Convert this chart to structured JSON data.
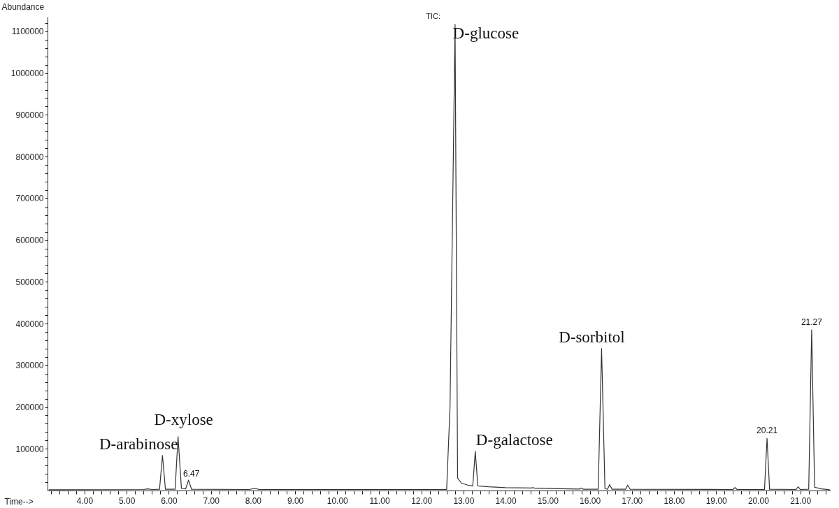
{
  "chart_data": {
    "type": "line",
    "xlabel": "Time-->",
    "ylabel": "Abundance",
    "x": [
      3.15,
      5.4,
      5.5,
      5.6,
      5.78,
      5.85,
      5.92,
      6.15,
      6.22,
      6.3,
      6.4,
      6.47,
      6.54,
      7.9,
      8.05,
      8.15,
      12.6,
      12.68,
      12.8,
      12.86,
      12.95,
      13.1,
      13.22,
      13.28,
      13.34,
      13.6,
      14.0,
      14.6,
      14.65,
      14.7,
      15.5,
      15.75,
      15.8,
      15.85,
      16.2,
      16.28,
      16.36,
      16.42,
      16.47,
      16.53,
      16.85,
      16.9,
      16.96,
      19.4,
      19.45,
      19.5,
      20.15,
      20.21,
      20.27,
      20.9,
      20.95,
      21.0,
      21.2,
      21.27,
      21.34,
      21.5,
      21.7
    ],
    "series": [
      {
        "color": "#333333",
        "values": [
          2000,
          2500,
          4000,
          2500,
          3000,
          84000,
          3000,
          3000,
          129000,
          5000,
          4000,
          25000,
          3000,
          2500,
          5000,
          2500,
          2500,
          200000,
          1117000,
          30000,
          18000,
          13000,
          11000,
          94000,
          11000,
          9000,
          7000,
          6000,
          7000,
          5500,
          4000,
          3500,
          6000,
          3000,
          3000,
          340000,
          5000,
          3000,
          14000,
          3000,
          3000,
          13000,
          3000,
          2500,
          7000,
          2500,
          2500,
          125000,
          3000,
          2500,
          9000,
          2500,
          3000,
          385000,
          8000,
          4000,
          2000
        ]
      }
    ],
    "xlim": [
      3.12,
      21.72
    ],
    "ylim": [
      0,
      1135000
    ],
    "xticks": [
      {
        "value": 3.2,
        "label": null
      },
      {
        "value": 3.4,
        "label": null
      },
      {
        "value": 3.6,
        "label": null
      },
      {
        "value": 3.8,
        "label": null
      },
      {
        "value": 4,
        "label": "4.00"
      },
      {
        "value": 4.2,
        "label": null
      },
      {
        "value": 4.4,
        "label": null
      },
      {
        "value": 4.6,
        "label": null
      },
      {
        "value": 4.8,
        "label": null
      },
      {
        "value": 5,
        "label": "5.00"
      },
      {
        "value": 5.2,
        "label": null
      },
      {
        "value": 5.4,
        "label": null
      },
      {
        "value": 5.6,
        "label": null
      },
      {
        "value": 5.8,
        "label": null
      },
      {
        "value": 6,
        "label": "6.00"
      },
      {
        "value": 6.2,
        "label": null
      },
      {
        "value": 6.4,
        "label": null
      },
      {
        "value": 6.6,
        "label": null
      },
      {
        "value": 6.8,
        "label": null
      },
      {
        "value": 7,
        "label": "7.00"
      },
      {
        "value": 7.2,
        "label": null
      },
      {
        "value": 7.4,
        "label": null
      },
      {
        "value": 7.6,
        "label": null
      },
      {
        "value": 7.8,
        "label": null
      },
      {
        "value": 8,
        "label": "8.00"
      },
      {
        "value": 8.2,
        "label": null
      },
      {
        "value": 8.4,
        "label": null
      },
      {
        "value": 8.6,
        "label": null
      },
      {
        "value": 8.8,
        "label": null
      },
      {
        "value": 9,
        "label": "9.00"
      },
      {
        "value": 9.2,
        "label": null
      },
      {
        "value": 9.4,
        "label": null
      },
      {
        "value": 9.6,
        "label": null
      },
      {
        "value": 9.8,
        "label": null
      },
      {
        "value": 10,
        "label": "10.00"
      },
      {
        "value": 10.2,
        "label": null
      },
      {
        "value": 10.4,
        "label": null
      },
      {
        "value": 10.6,
        "label": null
      },
      {
        "value": 10.8,
        "label": null
      },
      {
        "value": 11,
        "label": "11.00"
      },
      {
        "value": 11.2,
        "label": null
      },
      {
        "value": 11.4,
        "label": null
      },
      {
        "value": 11.6,
        "label": null
      },
      {
        "value": 11.8,
        "label": null
      },
      {
        "value": 12,
        "label": "12.00"
      },
      {
        "value": 12.2,
        "label": null
      },
      {
        "value": 12.4,
        "label": null
      },
      {
        "value": 12.6,
        "label": null
      },
      {
        "value": 12.8,
        "label": null
      },
      {
        "value": 13,
        "label": "13.00"
      },
      {
        "value": 13.2,
        "label": null
      },
      {
        "value": 13.4,
        "label": null
      },
      {
        "value": 13.6,
        "label": null
      },
      {
        "value": 13.8,
        "label": null
      },
      {
        "value": 14,
        "label": "14.00"
      },
      {
        "value": 14.2,
        "label": null
      },
      {
        "value": 14.4,
        "label": null
      },
      {
        "value": 14.6,
        "label": null
      },
      {
        "value": 14.8,
        "label": null
      },
      {
        "value": 15,
        "label": "15.00"
      },
      {
        "value": 15.2,
        "label": null
      },
      {
        "value": 15.4,
        "label": null
      },
      {
        "value": 15.6,
        "label": null
      },
      {
        "value": 15.8,
        "label": null
      },
      {
        "value": 16,
        "label": "16.00"
      },
      {
        "value": 16.2,
        "label": null
      },
      {
        "value": 16.4,
        "label": null
      },
      {
        "value": 16.6,
        "label": null
      },
      {
        "value": 16.8,
        "label": null
      },
      {
        "value": 17,
        "label": "17.00"
      },
      {
        "value": 17.2,
        "label": null
      },
      {
        "value": 17.4,
        "label": null
      },
      {
        "value": 17.6,
        "label": null
      },
      {
        "value": 17.8,
        "label": null
      },
      {
        "value": 18,
        "label": "18.00"
      },
      {
        "value": 18.2,
        "label": null
      },
      {
        "value": 18.4,
        "label": null
      },
      {
        "value": 18.6,
        "label": null
      },
      {
        "value": 18.8,
        "label": null
      },
      {
        "value": 19,
        "label": "19.00"
      },
      {
        "value": 19.2,
        "label": null
      },
      {
        "value": 19.4,
        "label": null
      },
      {
        "value": 19.6,
        "label": null
      },
      {
        "value": 19.8,
        "label": null
      },
      {
        "value": 20,
        "label": "20.00"
      },
      {
        "value": 20.2,
        "label": null
      },
      {
        "value": 20.4,
        "label": null
      },
      {
        "value": 20.6,
        "label": null
      },
      {
        "value": 20.8,
        "label": null
      },
      {
        "value": 21,
        "label": "21.00"
      },
      {
        "value": 21.2,
        "label": null
      },
      {
        "value": 21.4,
        "label": null
      },
      {
        "value": 21.6,
        "label": null
      }
    ],
    "yticks": [
      {
        "value": 20000,
        "label": null
      },
      {
        "value": 40000,
        "label": null
      },
      {
        "value": 60000,
        "label": null
      },
      {
        "value": 80000,
        "label": null
      },
      100000,
      {
        "value": 120000,
        "label": null
      },
      {
        "value": 140000,
        "label": null
      },
      {
        "value": 160000,
        "label": null
      },
      {
        "value": 180000,
        "label": null
      },
      200000,
      {
        "value": 220000,
        "label": null
      },
      {
        "value": 240000,
        "label": null
      },
      {
        "value": 260000,
        "label": null
      },
      {
        "value": 280000,
        "label": null
      },
      300000,
      {
        "value": 320000,
        "label": null
      },
      {
        "value": 340000,
        "label": null
      },
      {
        "value": 360000,
        "label": null
      },
      {
        "value": 380000,
        "label": null
      },
      400000,
      {
        "value": 420000,
        "label": null
      },
      {
        "value": 440000,
        "label": null
      },
      {
        "value": 460000,
        "label": null
      },
      {
        "value": 480000,
        "label": null
      },
      500000,
      {
        "value": 520000,
        "label": null
      },
      {
        "value": 540000,
        "label": null
      },
      {
        "value": 560000,
        "label": null
      },
      {
        "value": 580000,
        "label": null
      },
      600000,
      {
        "value": 620000,
        "label": null
      },
      {
        "value": 640000,
        "label": null
      },
      {
        "value": 660000,
        "label": null
      },
      {
        "value": 680000,
        "label": null
      },
      700000,
      {
        "value": 720000,
        "label": null
      },
      {
        "value": 740000,
        "label": null
      },
      {
        "value": 760000,
        "label": null
      },
      {
        "value": 780000,
        "label": null
      },
      800000,
      {
        "value": 820000,
        "label": null
      },
      {
        "value": 840000,
        "label": null
      },
      {
        "value": 860000,
        "label": null
      },
      {
        "value": 880000,
        "label": null
      },
      900000,
      {
        "value": 920000,
        "label": null
      },
      {
        "value": 940000,
        "label": null
      },
      {
        "value": 960000,
        "label": null
      },
      {
        "value": 980000,
        "label": null
      },
      1000000,
      {
        "value": 1020000,
        "label": null
      },
      {
        "value": 1040000,
        "label": null
      },
      {
        "value": 1060000,
        "label": null
      },
      {
        "value": 1080000,
        "label": null
      },
      1100000,
      {
        "value": 1120000,
        "label": null
      }
    ],
    "grid": false,
    "marker": "none",
    "line_style": "solid",
    "annotations": [
      {
        "text": "D-arabinose",
        "x": 5.85,
        "y": 84000
      },
      {
        "text": "D-xylose",
        "x": 6.22,
        "y": 129000
      },
      {
        "text": "6.47",
        "x": 6.47,
        "y": 25000
      },
      {
        "text": "D-glucose",
        "x": 12.8,
        "y": 1117000
      },
      {
        "text": "D-galactose",
        "x": 13.28,
        "y": 94000
      },
      {
        "text": "D-sorbitol",
        "x": 16.28,
        "y": 340000
      },
      {
        "text": "20.21",
        "x": 20.21,
        "y": 125000
      },
      {
        "text": "21.27",
        "x": 21.27,
        "y": 385000
      },
      "TIC:"
    ]
  }
}
